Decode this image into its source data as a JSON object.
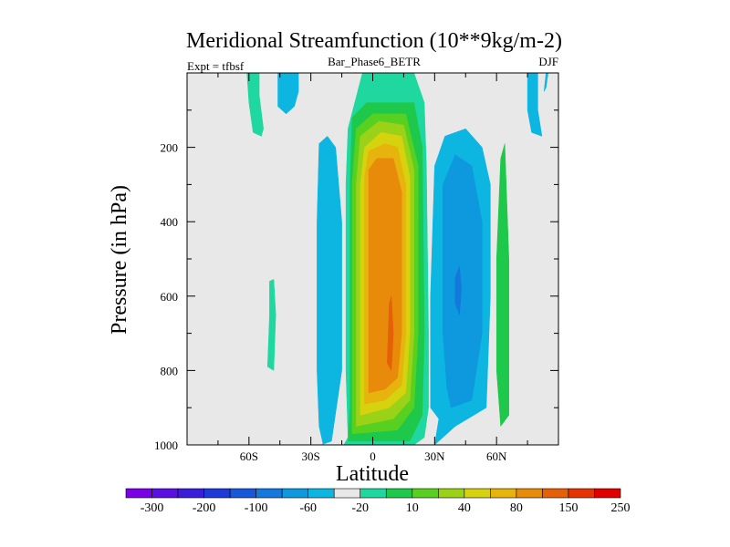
{
  "chart_data": {
    "type": "heatmap",
    "title": "Meridional Streamfunction (10**9kg/m-2)",
    "subtitle_left": "Expt = tfbsf",
    "subtitle_center": "Bar_Phase6_BETR",
    "subtitle_right": "DJF",
    "xlabel": "Latitude",
    "ylabel": "Pressure (in hPa)",
    "xlim": [
      -90,
      90
    ],
    "ylim": [
      1000,
      0
    ],
    "xticks": [
      {
        "value": -60,
        "label": "60S"
      },
      {
        "value": -30,
        "label": "30S"
      },
      {
        "value": 0,
        "label": "0"
      },
      {
        "value": 30,
        "label": "30N"
      },
      {
        "value": 60,
        "label": "60N"
      }
    ],
    "yticks": [
      {
        "value": 200,
        "label": "200"
      },
      {
        "value": 400,
        "label": "400"
      },
      {
        "value": 600,
        "label": "600"
      },
      {
        "value": 800,
        "label": "800"
      },
      {
        "value": 1000,
        "label": "1000"
      }
    ],
    "colorbar": {
      "colors": [
        "#7a00e6",
        "#5a10e0",
        "#3a1ed8",
        "#1e3ad8",
        "#1658da",
        "#1478dc",
        "#0e98de",
        "#0cb6e0",
        "#e8e8e8",
        "#1ed8a0",
        "#1ec84a",
        "#58d020",
        "#9ad218",
        "#d6d20e",
        "#e6b40c",
        "#e88a0a",
        "#e66008",
        "#e43404",
        "#e00000"
      ],
      "labels": [
        "-300",
        "-200",
        "-100",
        "-60",
        "-20",
        "10",
        "40",
        "80",
        "150",
        "250"
      ]
    },
    "contours": [
      {
        "name": "cell-sh-band",
        "color": "#0cb6e0",
        "points": [
          [
            -25,
            1000
          ],
          [
            -20,
            990
          ],
          [
            -15,
            800
          ],
          [
            -15,
            400
          ],
          [
            -18,
            200
          ],
          [
            -22,
            170
          ],
          [
            -26,
            190
          ],
          [
            -27,
            400
          ],
          [
            -27,
            800
          ],
          [
            -26,
            950
          ],
          [
            -24,
            1000
          ]
        ]
      },
      {
        "name": "cell-nh-blue-outer",
        "color": "#0cb6e0",
        "points": [
          [
            30,
            1000
          ],
          [
            40,
            950
          ],
          [
            55,
            900
          ],
          [
            57,
            600
          ],
          [
            57,
            300
          ],
          [
            53,
            200
          ],
          [
            45,
            150
          ],
          [
            35,
            170
          ],
          [
            30,
            250
          ],
          [
            28,
            600
          ],
          [
            28,
            900
          ],
          [
            32,
            930
          ]
        ]
      },
      {
        "name": "cell-nh-blue-mid",
        "color": "#0e98de",
        "points": [
          [
            38,
            900
          ],
          [
            48,
            880
          ],
          [
            53,
            700
          ],
          [
            53,
            400
          ],
          [
            48,
            250
          ],
          [
            40,
            220
          ],
          [
            34,
            300
          ],
          [
            34,
            700
          ],
          [
            36,
            850
          ]
        ]
      },
      {
        "name": "cell-nh-blue-inner",
        "color": "#1478dc",
        "points": [
          [
            40,
            550
          ],
          [
            42,
            520
          ],
          [
            43,
            580
          ],
          [
            42,
            650
          ],
          [
            40,
            620
          ]
        ]
      },
      {
        "name": "top-teal-sh",
        "color": "#1ed8a0",
        "points": [
          [
            -61,
            0
          ],
          [
            -55,
            0
          ],
          [
            -55,
            60
          ],
          [
            -53,
            150
          ],
          [
            -54,
            170
          ],
          [
            -58,
            160
          ],
          [
            -60,
            80
          ]
        ]
      },
      {
        "name": "top-blue-sh",
        "color": "#0cb6e0",
        "points": [
          [
            -46,
            0
          ],
          [
            -36,
            0
          ],
          [
            -36,
            50
          ],
          [
            -38,
            90
          ],
          [
            -42,
            110
          ],
          [
            -46,
            90
          ]
        ]
      },
      {
        "name": "mid-teal-sh",
        "color": "#1ed8a0",
        "points": [
          [
            -50,
            560
          ],
          [
            -48,
            555
          ],
          [
            -47,
            650
          ],
          [
            -48,
            800
          ],
          [
            -51,
            790
          ],
          [
            -50,
            650
          ]
        ]
      },
      {
        "name": "top-blue-nh-right",
        "color": "#0cb6e0",
        "points": [
          [
            75,
            0
          ],
          [
            80,
            0
          ],
          [
            80,
            100
          ],
          [
            82,
            170
          ],
          [
            77,
            160
          ],
          [
            75,
            100
          ]
        ]
      },
      {
        "name": "top-blue-nh-right2",
        "color": "#0cb6e0",
        "points": [
          [
            84,
            0
          ],
          [
            85,
            0
          ],
          [
            84,
            40
          ],
          [
            83,
            50
          ]
        ]
      },
      {
        "name": "nh-green-strip",
        "color": "#1ec84a",
        "points": [
          [
            62,
            950
          ],
          [
            66,
            920
          ],
          [
            66,
            500
          ],
          [
            64,
            190
          ],
          [
            62,
            230
          ],
          [
            60,
            500
          ],
          [
            60,
            800
          ]
        ]
      },
      {
        "name": "hadley-l0",
        "color": "#1ed8a0",
        "points": [
          [
            -14,
            1000
          ],
          [
            -12,
            980
          ],
          [
            -13,
            800
          ],
          [
            -13,
            300
          ],
          [
            -12,
            150
          ],
          [
            -5,
            0
          ],
          [
            20,
            0
          ],
          [
            25,
            80
          ],
          [
            26,
            250
          ],
          [
            27,
            700
          ],
          [
            27,
            900
          ],
          [
            25,
            980
          ],
          [
            20,
            1000
          ]
        ]
      },
      {
        "name": "hadley-l1",
        "color": "#1ec84a",
        "points": [
          [
            -12,
            990
          ],
          [
            -11,
            900
          ],
          [
            -11,
            300
          ],
          [
            -10,
            120
          ],
          [
            -3,
            80
          ],
          [
            20,
            80
          ],
          [
            24,
            200
          ],
          [
            25,
            700
          ],
          [
            24,
            920
          ],
          [
            18,
            990
          ]
        ]
      },
      {
        "name": "hadley-l2",
        "color": "#58d020",
        "points": [
          [
            -10,
            970
          ],
          [
            -10,
            700
          ],
          [
            -10,
            300
          ],
          [
            -8,
            150
          ],
          [
            0,
            110
          ],
          [
            16,
            110
          ],
          [
            22,
            250
          ],
          [
            22,
            700
          ],
          [
            20,
            900
          ],
          [
            12,
            960
          ]
        ]
      },
      {
        "name": "hadley-l3",
        "color": "#9ad218",
        "points": [
          [
            -8,
            950
          ],
          [
            -8,
            300
          ],
          [
            -6,
            170
          ],
          [
            3,
            130
          ],
          [
            15,
            140
          ],
          [
            20,
            260
          ],
          [
            20,
            700
          ],
          [
            18,
            880
          ],
          [
            10,
            930
          ]
        ]
      },
      {
        "name": "hadley-l4",
        "color": "#d6d20e",
        "points": [
          [
            -6,
            920
          ],
          [
            -6,
            300
          ],
          [
            -4,
            200
          ],
          [
            4,
            160
          ],
          [
            14,
            170
          ],
          [
            18,
            280
          ],
          [
            18,
            700
          ],
          [
            16,
            860
          ],
          [
            8,
            900
          ]
        ]
      },
      {
        "name": "hadley-l5",
        "color": "#e6b40c",
        "points": [
          [
            -4,
            890
          ],
          [
            -4,
            280
          ],
          [
            -2,
            210
          ],
          [
            6,
            190
          ],
          [
            12,
            200
          ],
          [
            16,
            300
          ],
          [
            16,
            700
          ],
          [
            14,
            840
          ],
          [
            6,
            880
          ]
        ]
      },
      {
        "name": "hadley-l6",
        "color": "#e88a0a",
        "points": [
          [
            -2,
            860
          ],
          [
            -2,
            260
          ],
          [
            2,
            230
          ],
          [
            10,
            230
          ],
          [
            14,
            320
          ],
          [
            14,
            700
          ],
          [
            12,
            820
          ],
          [
            6,
            850
          ]
        ]
      },
      {
        "name": "hadley-l7",
        "color": "#e66008",
        "points": [
          [
            7,
            780
          ],
          [
            8,
            620
          ],
          [
            9,
            600
          ],
          [
            10,
            700
          ],
          [
            9,
            800
          ]
        ]
      }
    ]
  }
}
